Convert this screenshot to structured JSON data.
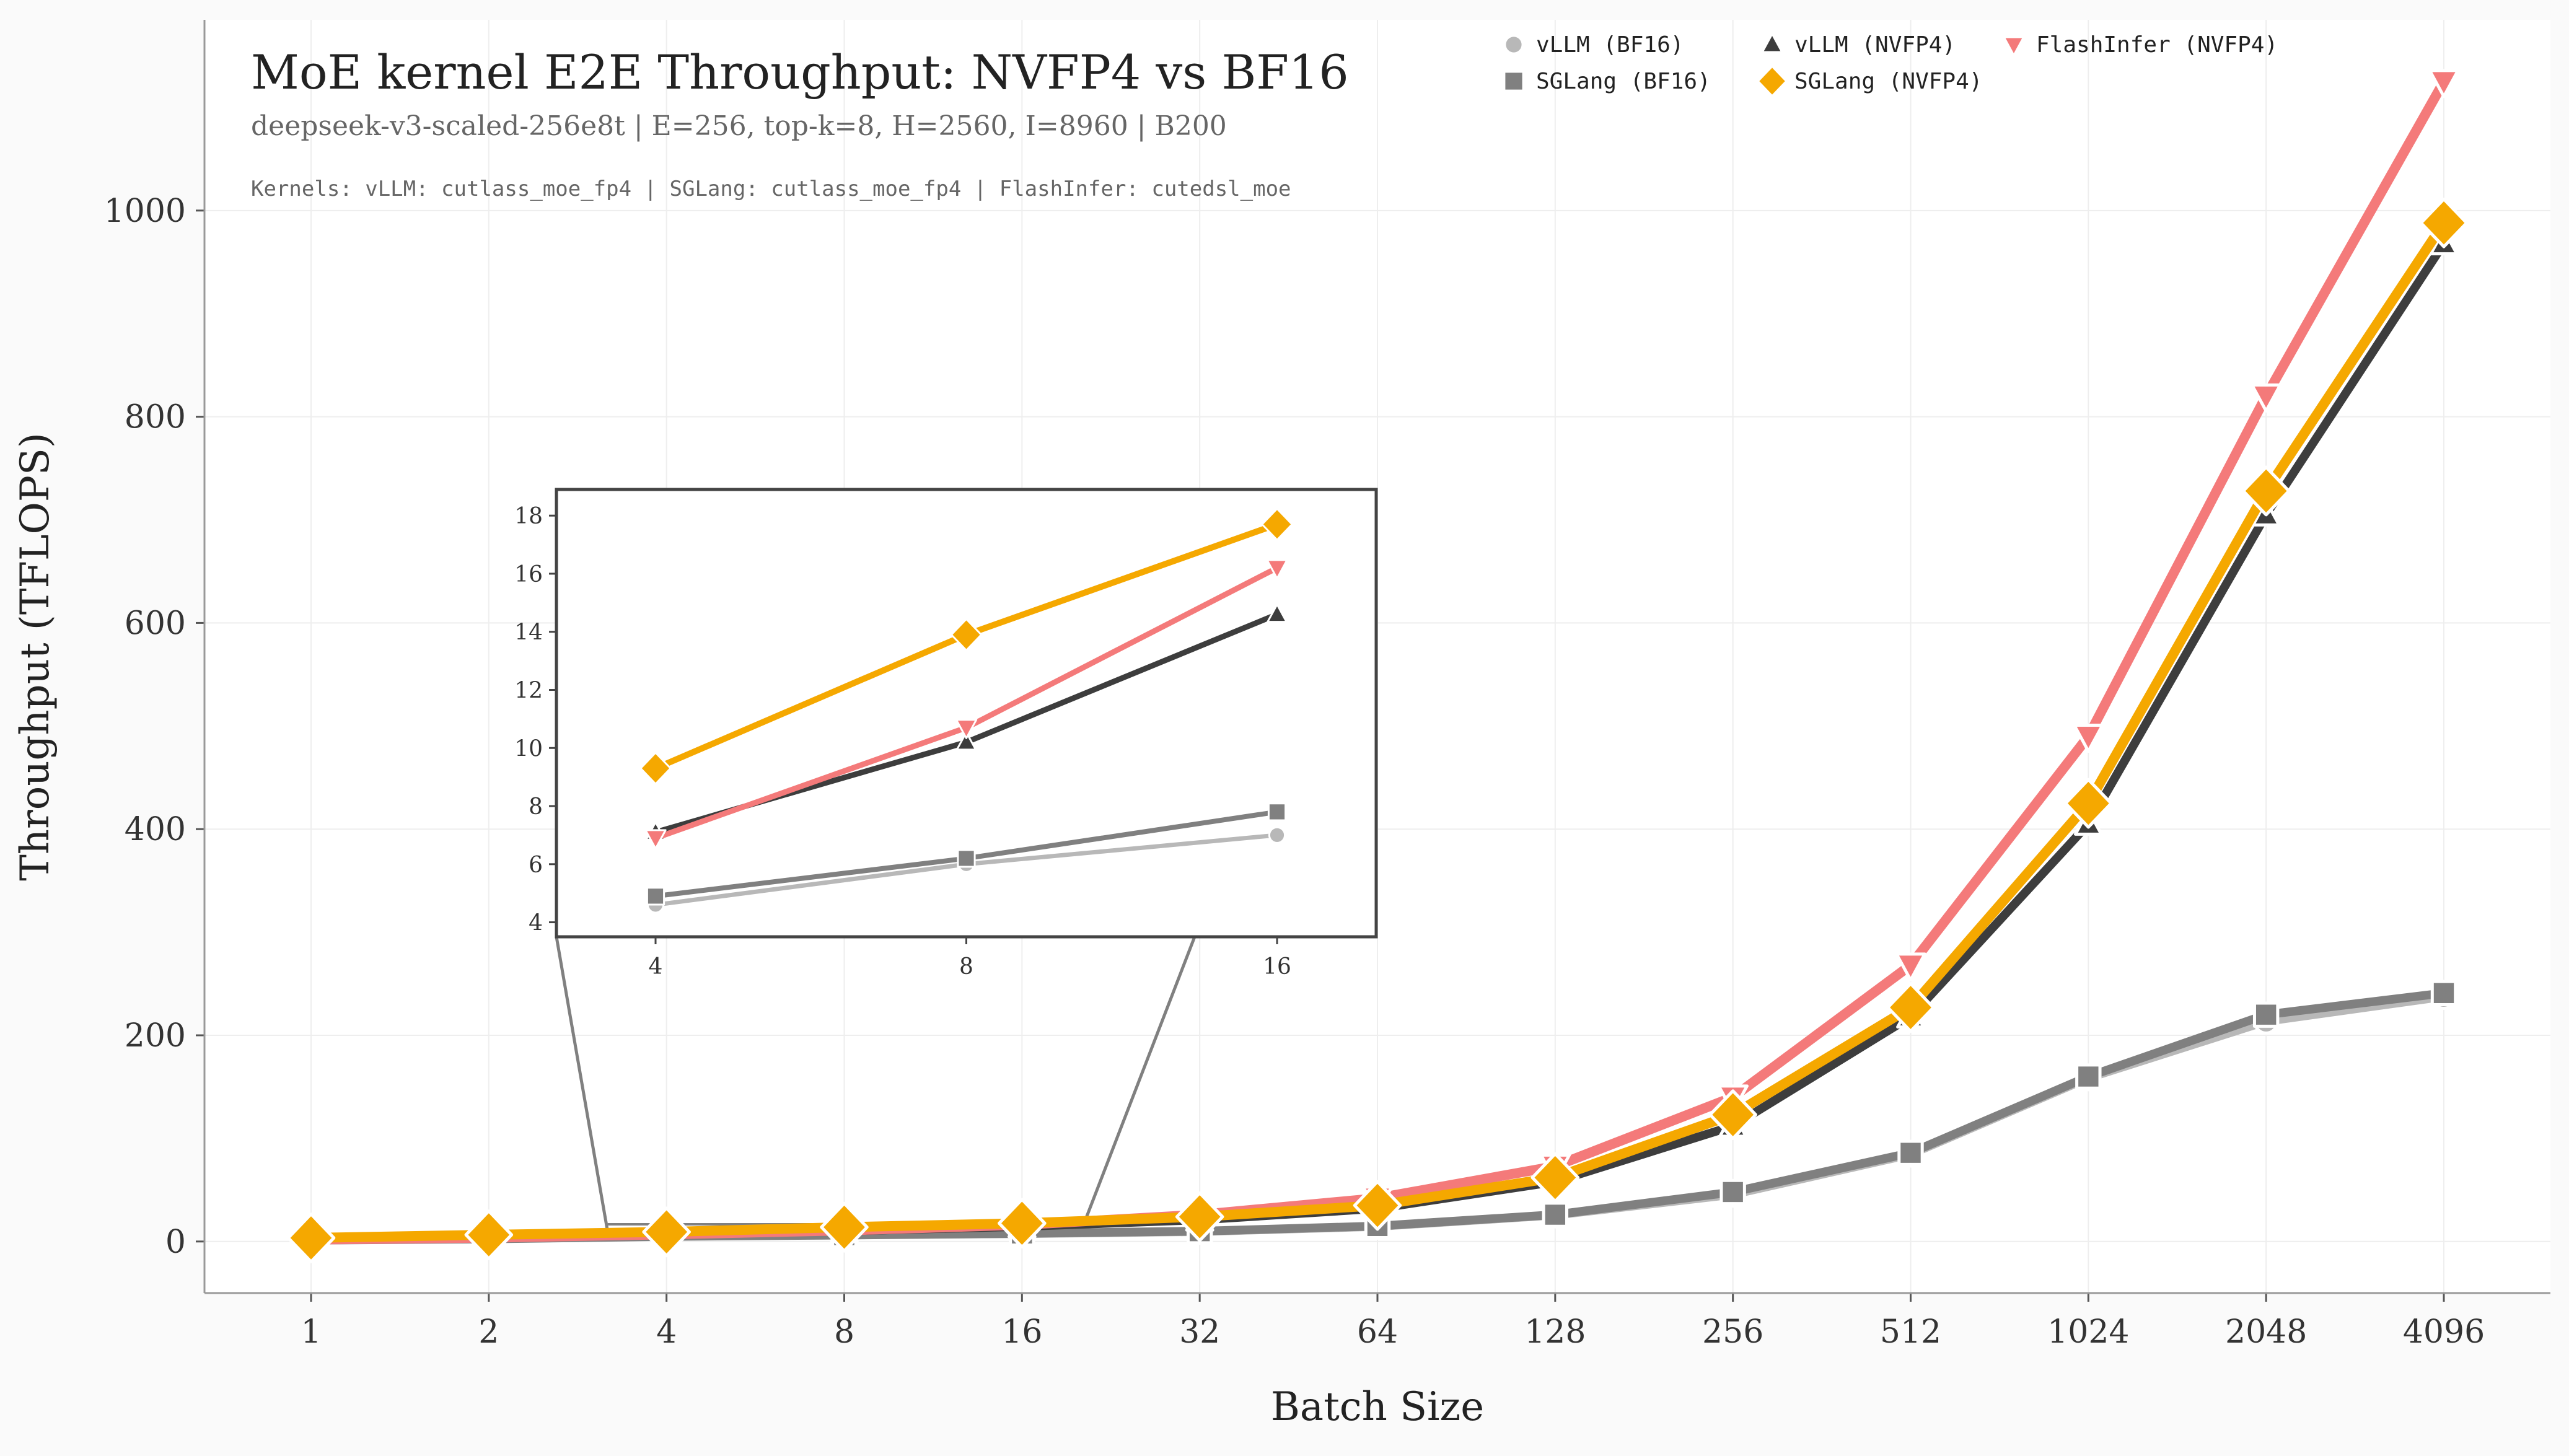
{
  "chart_data": {
    "type": "line",
    "title": "MoE kernel E2E Throughput: NVFP4 vs BF16",
    "subtitle": "deepseek-v3-scaled-256e8t | E=256, top-k=8, H=2560, I=8960 | B200",
    "annotation": "Kernels: vLLM: cutlass_moe_fp4 | SGLang: cutlass_moe_fp4 | FlashInfer: cutedsl_moe",
    "xlabel": "Batch Size",
    "ylabel": "Throughput (TFLOPS)",
    "x_scale": "log2",
    "x": [
      1,
      2,
      4,
      8,
      16,
      32,
      64,
      128,
      256,
      512,
      1024,
      2048,
      4096
    ],
    "x_tick_labels": [
      "1",
      "2",
      "4",
      "8",
      "16",
      "32",
      "64",
      "128",
      "256",
      "512",
      "1024",
      "2048",
      "4096"
    ],
    "ylim": [
      -50,
      1185
    ],
    "y_ticks": [
      0,
      200,
      400,
      600,
      800,
      1000
    ],
    "y_tick_labels": [
      "0",
      "200",
      "400",
      "600",
      "800",
      "1000"
    ],
    "grid": true,
    "legend_position": "top-right",
    "series": [
      {
        "name": "vLLM (BF16)",
        "color": "#b8b8b8",
        "marker": "circle",
        "values": [
          1.2,
          2.4,
          4.6,
          6.0,
          7.0,
          9.0,
          14.0,
          25.0,
          45.0,
          84.0,
          158.0,
          213.0,
          237.0
        ]
      },
      {
        "name": "SGLang (BF16)",
        "color": "#808080",
        "marker": "square",
        "values": [
          1.3,
          2.5,
          4.9,
          6.2,
          7.8,
          10.0,
          15.0,
          26.0,
          48.0,
          86.0,
          160.0,
          220.0,
          241.0
        ]
      },
      {
        "name": "vLLM (NVFP4)",
        "color": "#3d3d3d",
        "marker": "triangle-up",
        "values": [
          2.0,
          3.8,
          7.1,
          10.2,
          14.6,
          21.0,
          32.0,
          58.0,
          112.0,
          218.0,
          405.0,
          705.0,
          968.0
        ]
      },
      {
        "name": "FlashInfer (NVFP4)",
        "color": "#f47a7a",
        "marker": "triangle-down",
        "values": [
          1.9,
          3.7,
          6.9,
          10.7,
          16.2,
          26.0,
          42.0,
          73.0,
          140.0,
          268.0,
          490.0,
          820.0,
          1125.0
        ]
      },
      {
        "name": "SGLang (NVFP4)",
        "color": "#f5a800",
        "marker": "diamond",
        "values": [
          3.5,
          6.5,
          9.3,
          13.9,
          17.7,
          24.0,
          35.0,
          62.0,
          123.0,
          227.0,
          425.0,
          728.0,
          988.0
        ]
      }
    ],
    "inset": {
      "x": [
        4,
        8,
        16
      ],
      "x_tick_labels": [
        "4",
        "8",
        "16"
      ],
      "ylim": [
        3.5,
        18.9
      ],
      "y_ticks": [
        4,
        6,
        8,
        10,
        12,
        14,
        16,
        18
      ],
      "y_tick_labels": [
        "4",
        "6",
        "8",
        "10",
        "12",
        "14",
        "16",
        "18"
      ]
    }
  }
}
